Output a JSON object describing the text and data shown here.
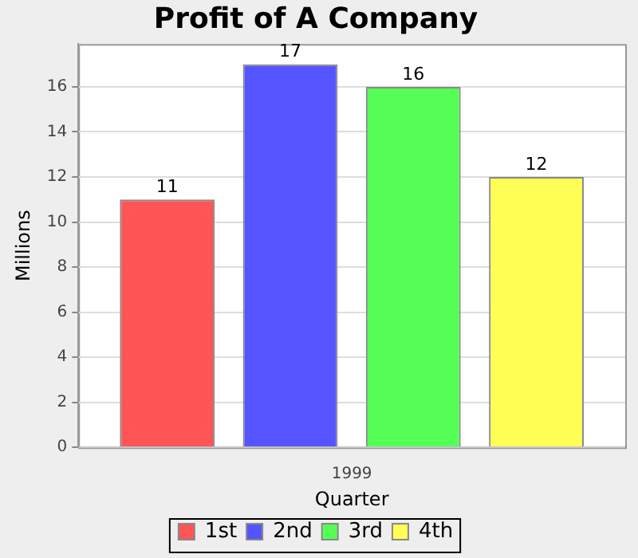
{
  "chart_data": {
    "type": "bar",
    "title": "Profit of A Company",
    "xlabel": "Quarter",
    "ylabel": "Millions",
    "categories": [
      "1999"
    ],
    "series": [
      {
        "name": "1st",
        "color": "#ff5555",
        "values": [
          11
        ]
      },
      {
        "name": "2nd",
        "color": "#5555ff",
        "values": [
          17
        ]
      },
      {
        "name": "3rd",
        "color": "#55ff55",
        "values": [
          16
        ]
      },
      {
        "name": "4th",
        "color": "#ffff55",
        "values": [
          12
        ]
      }
    ],
    "ylim": [
      0,
      17.9
    ],
    "yticks": [
      0,
      2,
      4,
      6,
      8,
      10,
      12,
      14,
      16
    ],
    "grid": "y",
    "legend": "bottom",
    "data_labels": true
  }
}
